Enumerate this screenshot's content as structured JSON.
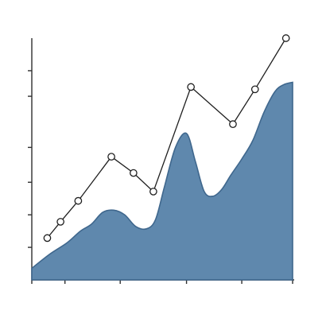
{
  "chart_data": {
    "type": "line",
    "title": "",
    "xlabel": "",
    "ylabel": "",
    "xlim": [
      0,
      11.8
    ],
    "ylim": [
      0,
      10.4
    ],
    "grid": false,
    "legend": "none",
    "x_ticks": [
      0,
      1.5,
      4,
      7,
      9.5,
      11.8
    ],
    "y_ticks": [
      1.4,
      2.8,
      4.2,
      5.7,
      7.9,
      9.0
    ],
    "series": [
      {
        "name": "area_series",
        "type": "area",
        "color": "#5f88ad",
        "points": [
          [
            0,
            0.5
          ],
          [
            0.8,
            1.1
          ],
          [
            1.6,
            1.6
          ],
          [
            2.2,
            2.1
          ],
          [
            2.7,
            2.4
          ],
          [
            3.2,
            2.9
          ],
          [
            3.7,
            3.0
          ],
          [
            4.2,
            2.8
          ],
          [
            4.7,
            2.3
          ],
          [
            5.2,
            2.2
          ],
          [
            5.6,
            2.6
          ],
          [
            6.0,
            4.0
          ],
          [
            6.5,
            5.7
          ],
          [
            7.0,
            6.3
          ],
          [
            7.4,
            5.1
          ],
          [
            7.8,
            3.8
          ],
          [
            8.2,
            3.6
          ],
          [
            8.6,
            3.9
          ],
          [
            9.0,
            4.5
          ],
          [
            9.5,
            5.2
          ],
          [
            10.0,
            6.0
          ],
          [
            10.5,
            7.2
          ],
          [
            11.0,
            8.1
          ],
          [
            11.4,
            8.4
          ],
          [
            11.8,
            8.5
          ]
        ]
      },
      {
        "name": "line_series",
        "type": "line",
        "color": "#1f1f1f",
        "points": [
          [
            0.7,
            1.8
          ],
          [
            1.3,
            2.5
          ],
          [
            2.1,
            3.4
          ],
          [
            3.6,
            5.3
          ],
          [
            4.6,
            4.6
          ],
          [
            5.5,
            3.8
          ],
          [
            7.2,
            8.3
          ],
          [
            9.1,
            6.7
          ],
          [
            10.1,
            8.2
          ],
          [
            11.5,
            10.4
          ]
        ]
      }
    ]
  }
}
